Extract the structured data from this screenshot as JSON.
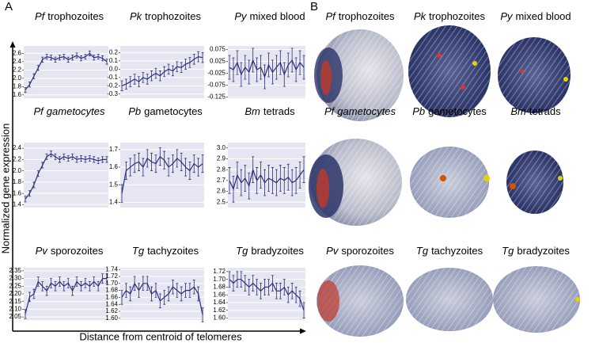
{
  "panel_labels": [
    "A",
    "B"
  ],
  "y_axis_label": "Normalized gene expression",
  "x_axis_label": "Distance from centroid of telomeres",
  "structures": [
    {
      "species": "Pf",
      "title": "trophozoites"
    },
    {
      "species": "Pk",
      "title": "trophozoites"
    },
    {
      "species": "Py",
      "title": "mixed blood"
    },
    {
      "species": "Pf",
      "title": "gametocytes",
      "italic_title": true
    },
    {
      "species": "Pb",
      "title": "gametocytes"
    },
    {
      "species": "Bm",
      "title": "tetrads"
    },
    {
      "species": "Pv",
      "title": "sporozoites"
    },
    {
      "species": "Tg",
      "title": "tachyzoites"
    },
    {
      "species": "Tg",
      "title": "bradyzoites"
    }
  ],
  "chart_data": [
    {
      "type": "line",
      "species": "Pf",
      "title": "trophozoites",
      "color": "#2b2f7a",
      "grid": true,
      "values": [
        1.72,
        1.85,
        2.05,
        2.25,
        2.45,
        2.52,
        2.5,
        2.45,
        2.5,
        2.52,
        2.45,
        2.5,
        2.55,
        2.48,
        2.52,
        2.6,
        2.5,
        2.52,
        2.48,
        2.4
      ],
      "errors": [
        0.06,
        0.06,
        0.06,
        0.06,
        0.06,
        0.06,
        0.06,
        0.06,
        0.06,
        0.06,
        0.06,
        0.06,
        0.06,
        0.06,
        0.06,
        0.06,
        0.06,
        0.06,
        0.06,
        0.06
      ],
      "ylim": [
        1.52,
        2.78
      ],
      "yticks": [
        1.6,
        1.8,
        {
          "value": 2,
          "label": "2.0"
        },
        2.2,
        2.4,
        2.6
      ]
    },
    {
      "type": "line",
      "species": "Pk",
      "title": "trophozoites",
      "color": "#2b2f7a",
      "grid": true,
      "values": [
        -0.2,
        -0.18,
        -0.15,
        -0.12,
        -0.15,
        -0.1,
        -0.12,
        -0.08,
        -0.05,
        -0.08,
        -0.03,
        0.0,
        -0.02,
        0.03,
        0.02,
        0.06,
        0.08,
        0.12,
        0.15,
        0.14
      ],
      "errors": [
        0.06,
        0.06,
        0.06,
        0.06,
        0.06,
        0.06,
        0.06,
        0.06,
        0.06,
        0.06,
        0.06,
        0.06,
        0.06,
        0.06,
        0.06,
        0.06,
        0.06,
        0.06,
        0.06,
        0.06
      ],
      "ylim": [
        -0.35,
        0.28
      ],
      "yticks": [
        -0.3,
        -0.2,
        -0.1,
        {
          "value": 0,
          "label": "0.0"
        },
        0.1,
        0.2
      ]
    },
    {
      "type": "line",
      "species": "Py",
      "title": "mixed blood",
      "color": "#2b2f7a",
      "grid": true,
      "values": [
        0.0,
        -0.01,
        0.02,
        -0.03,
        0.0,
        -0.02,
        0.03,
        -0.01,
        0.0,
        -0.04,
        0.01,
        -0.02,
        0.0,
        0.02,
        -0.03,
        0.01,
        0.03,
        -0.01,
        0.02,
        0.0
      ],
      "errors": [
        0.05,
        0.05,
        0.05,
        0.05,
        0.05,
        0.05,
        0.05,
        0.05,
        0.05,
        0.05,
        0.05,
        0.05,
        0.05,
        0.05,
        0.05,
        0.05,
        0.05,
        0.05,
        0.05,
        0.05
      ],
      "ylim": [
        -0.13,
        0.09
      ],
      "yticks": [
        -0.125,
        -0.075,
        -0.025,
        0.025,
        0.075
      ]
    },
    {
      "type": "line",
      "species": "Pf",
      "title": "gametocytes",
      "italic_title": true,
      "color": "#2b2f7a",
      "grid": true,
      "values": [
        1.5,
        1.6,
        1.75,
        1.95,
        2.1,
        2.25,
        2.3,
        2.25,
        2.2,
        2.25,
        2.22,
        2.25,
        2.2,
        2.22,
        2.2,
        2.22,
        2.2,
        2.18,
        2.2,
        2.2
      ],
      "errors": [
        0.05,
        0.05,
        0.05,
        0.05,
        0.05,
        0.05,
        0.05,
        0.05,
        0.05,
        0.05,
        0.05,
        0.05,
        0.05,
        0.05,
        0.05,
        0.05,
        0.05,
        0.05,
        0.05,
        0.05
      ],
      "ylim": [
        1.35,
        2.5
      ],
      "yticks": [
        1.4,
        1.6,
        1.8,
        {
          "value": 2,
          "label": "2.0"
        },
        2.2,
        2.4
      ]
    },
    {
      "type": "line",
      "species": "Pb",
      "title": "gametocytes",
      "color": "#2b2f7a",
      "grid": true,
      "values": [
        1.45,
        1.58,
        1.6,
        1.62,
        1.63,
        1.6,
        1.65,
        1.63,
        1.62,
        1.66,
        1.64,
        1.6,
        1.62,
        1.65,
        1.63,
        1.6,
        1.58,
        1.62,
        1.6,
        1.62
      ],
      "errors": [
        0.05,
        0.05,
        0.05,
        0.05,
        0.05,
        0.05,
        0.05,
        0.05,
        0.05,
        0.05,
        0.05,
        0.05,
        0.05,
        0.05,
        0.05,
        0.05,
        0.05,
        0.05,
        0.05,
        0.05
      ],
      "ylim": [
        1.37,
        1.74
      ],
      "yticks": [
        1.4,
        1.5,
        1.6,
        1.7
      ]
    },
    {
      "type": "line",
      "species": "Bm",
      "title": "tetrads",
      "color": "#2b2f7a",
      "grid": true,
      "values": [
        2.7,
        2.62,
        2.75,
        2.68,
        2.72,
        2.65,
        2.8,
        2.7,
        2.75,
        2.68,
        2.72,
        2.7,
        2.68,
        2.72,
        2.7,
        2.73,
        2.68,
        2.7,
        2.75,
        2.8
      ],
      "errors": [
        0.12,
        0.12,
        0.12,
        0.12,
        0.12,
        0.12,
        0.12,
        0.12,
        0.12,
        0.12,
        0.12,
        0.12,
        0.12,
        0.12,
        0.12,
        0.12,
        0.12,
        0.12,
        0.12,
        0.12
      ],
      "ylim": [
        2.45,
        3.05
      ],
      "yticks": [
        2.5,
        2.6,
        2.7,
        2.8,
        2.9,
        {
          "value": 3,
          "label": "3.0"
        }
      ]
    },
    {
      "type": "line",
      "species": "Pv",
      "title": "sporozoites",
      "color": "#2b2f7a",
      "grid": true,
      "values": [
        2.07,
        2.18,
        2.2,
        2.28,
        2.25,
        2.22,
        2.27,
        2.25,
        2.28,
        2.25,
        2.27,
        2.22,
        2.28,
        2.25,
        2.27,
        2.25,
        2.28,
        2.25,
        2.3,
        2.3
      ],
      "errors": [
        0.03,
        0.03,
        0.03,
        0.03,
        0.03,
        0.03,
        0.03,
        0.03,
        0.03,
        0.03,
        0.03,
        0.03,
        0.03,
        0.03,
        0.03,
        0.03,
        0.03,
        0.03,
        0.03,
        0.03
      ],
      "ylim": [
        2.03,
        2.37
      ],
      "yticks": [
        2.05,
        {
          "value": 2.1,
          "label": "2.10"
        },
        2.15,
        {
          "value": 2.2,
          "label": "2.20"
        },
        2.25,
        {
          "value": 2.3,
          "label": "2.30"
        },
        2.35
      ]
    },
    {
      "type": "line",
      "species": "Tg",
      "title": "tachyzoites",
      "color": "#2b2f7a",
      "grid": true,
      "values": [
        1.66,
        1.68,
        1.67,
        1.7,
        1.68,
        1.7,
        1.7,
        1.67,
        1.68,
        1.65,
        1.66,
        1.67,
        1.69,
        1.68,
        1.67,
        1.68,
        1.68,
        1.69,
        1.67,
        1.61
      ],
      "errors": [
        0.02,
        0.02,
        0.02,
        0.02,
        0.02,
        0.02,
        0.02,
        0.02,
        0.02,
        0.02,
        0.02,
        0.02,
        0.02,
        0.02,
        0.02,
        0.02,
        0.02,
        0.02,
        0.02,
        0.02
      ],
      "ylim": [
        1.595,
        1.745
      ],
      "yticks": [
        {
          "value": 1.6,
          "label": "1.60"
        },
        1.62,
        1.64,
        1.66,
        1.68,
        {
          "value": 1.7,
          "label": "1.70"
        },
        1.72,
        1.74
      ]
    },
    {
      "type": "line",
      "species": "Tg",
      "title": "bradyzoites",
      "color": "#2b2f7a",
      "grid": true,
      "values": [
        1.7,
        1.69,
        1.7,
        1.7,
        1.69,
        1.68,
        1.69,
        1.68,
        1.67,
        1.68,
        1.68,
        1.69,
        1.67,
        1.67,
        1.68,
        1.66,
        1.67,
        1.66,
        1.65,
        1.62
      ],
      "errors": [
        0.02,
        0.02,
        0.02,
        0.02,
        0.02,
        0.02,
        0.02,
        0.02,
        0.02,
        0.02,
        0.02,
        0.02,
        0.02,
        0.02,
        0.02,
        0.02,
        0.02,
        0.02,
        0.02,
        0.02
      ],
      "ylim": [
        1.595,
        1.73
      ],
      "yticks": [
        {
          "value": 1.6,
          "label": "1.60"
        },
        1.62,
        1.64,
        1.66,
        1.68,
        {
          "value": 1.7,
          "label": "1.70"
        },
        1.72
      ]
    }
  ]
}
